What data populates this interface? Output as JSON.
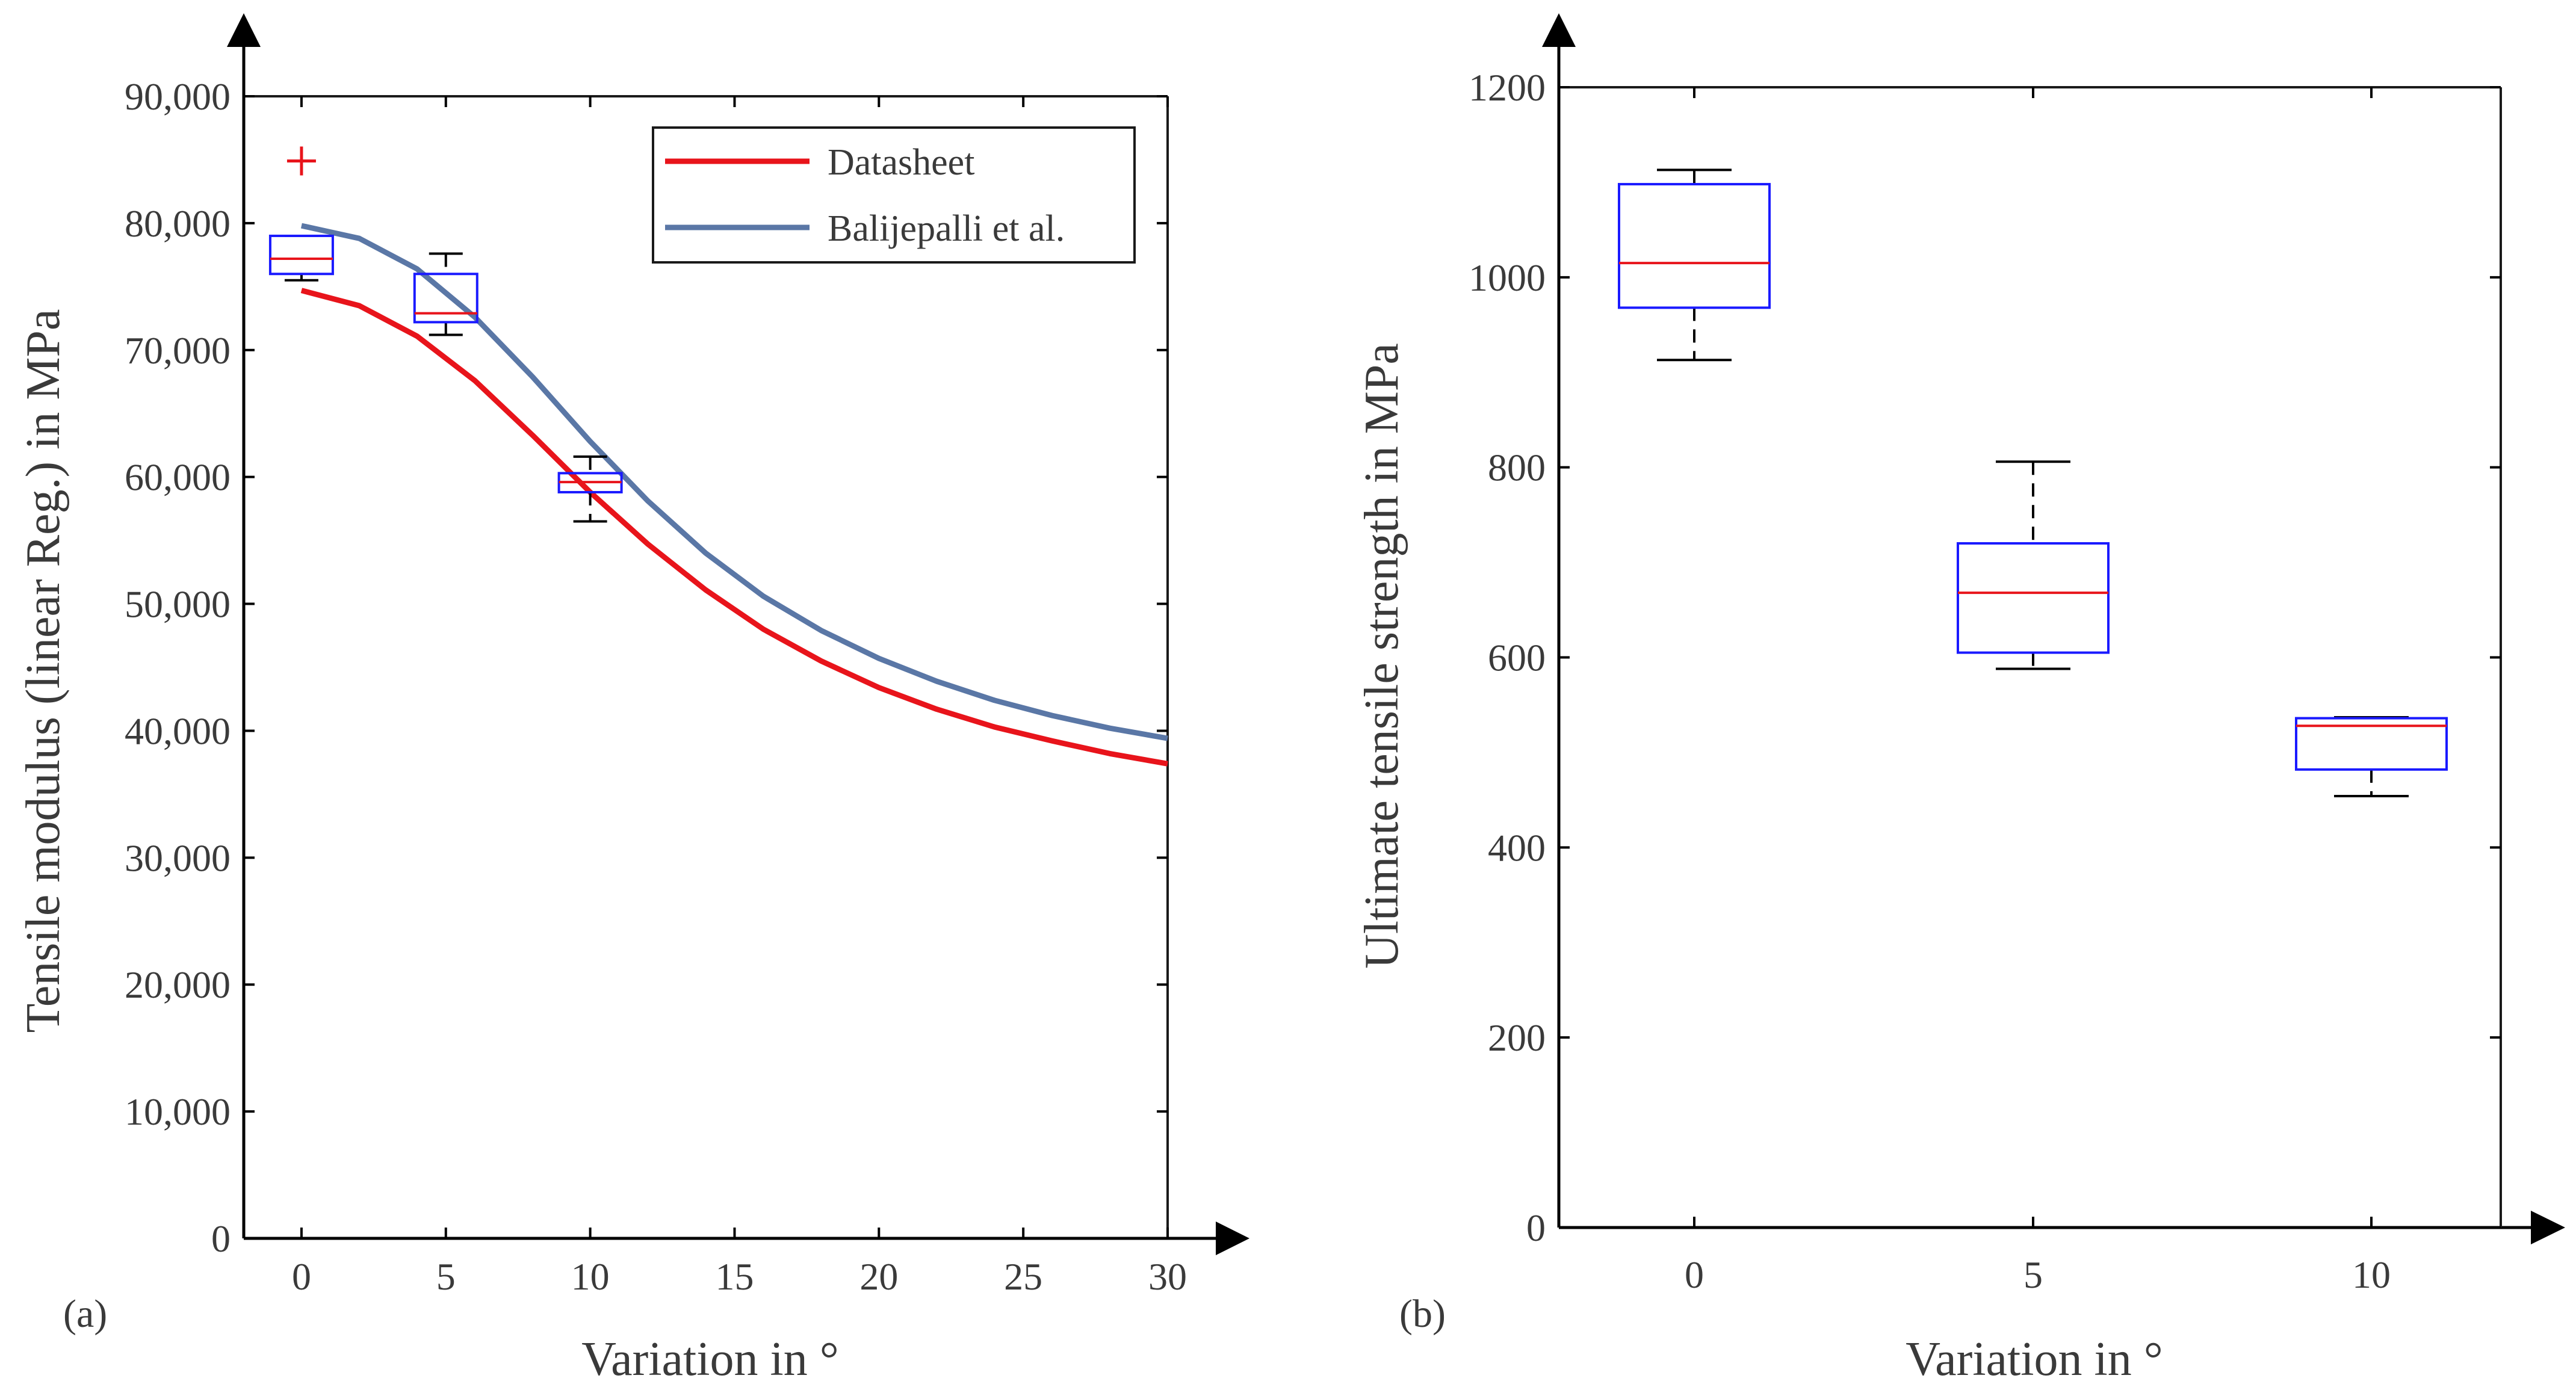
{
  "chart_data": [
    {
      "id": "a",
      "panel_label": "(a)",
      "type": "line+box",
      "xlabel": "Variation in °",
      "ylabel": "Tensile modulus (linear Reg.) in MPa",
      "xlim": [
        -2,
        30
      ],
      "ylim": [
        0,
        90000
      ],
      "xticks": [
        0,
        5,
        10,
        15,
        20,
        25,
        30
      ],
      "xtick_labels": [
        "0",
        "5",
        "10",
        "15",
        "20",
        "25",
        "30"
      ],
      "yticks": [
        0,
        10000,
        20000,
        30000,
        40000,
        50000,
        60000,
        70000,
        80000,
        90000
      ],
      "ytick_labels": [
        "0",
        "10,000",
        "20,000",
        "30,000",
        "40,000",
        "50,000",
        "60,000",
        "70,000",
        "80,000",
        "90,000"
      ],
      "legend_position": "top-right",
      "series": [
        {
          "name": "Datasheet",
          "color": "#e8141b",
          "x": [
            0,
            2,
            4,
            6,
            8,
            10,
            12,
            14,
            16,
            18,
            20,
            22,
            24,
            26,
            28,
            30
          ],
          "y": [
            74700,
            73500,
            71100,
            67600,
            63300,
            58800,
            54700,
            51100,
            48000,
            45500,
            43400,
            41700,
            40300,
            39200,
            38200,
            37400
          ]
        },
        {
          "name": "Balijepalli et al.",
          "color": "#5a77a6",
          "x": [
            0,
            2,
            4,
            6,
            8,
            10,
            12,
            14,
            16,
            18,
            20,
            22,
            24,
            26,
            28,
            30
          ],
          "y": [
            79800,
            78800,
            76400,
            72600,
            67900,
            62800,
            58100,
            54000,
            50600,
            47900,
            45700,
            43900,
            42400,
            41200,
            40200,
            39400
          ]
        }
      ],
      "boxes": [
        {
          "x": 0,
          "whisker_low": 75500,
          "q1": 76000,
          "median": 77200,
          "q3": 79000,
          "whisker_high": 79000,
          "outliers": [
            84900
          ]
        },
        {
          "x": 5,
          "whisker_low": 71200,
          "q1": 72200,
          "median": 72900,
          "q3": 76000,
          "whisker_high": 77600,
          "outliers": []
        },
        {
          "x": 10,
          "whisker_low": 56500,
          "q1": 58800,
          "median": 59600,
          "q3": 60300,
          "whisker_high": 61600,
          "outliers": []
        }
      ],
      "box_color": "#1a1aff",
      "median_color": "#e8141b",
      "whisker_color": "#000000"
    },
    {
      "id": "b",
      "panel_label": "(b)",
      "type": "box",
      "xlabel": "Variation in °",
      "ylabel": "Ultimate tensile strength in MPa",
      "categories": [
        "0",
        "5",
        "10"
      ],
      "ylim": [
        0,
        1200
      ],
      "yticks": [
        0,
        200,
        400,
        600,
        800,
        1000,
        1200
      ],
      "ytick_labels": [
        "0",
        "200",
        "400",
        "600",
        "800",
        "1000",
        "1200"
      ],
      "boxes": [
        {
          "category": "0",
          "whisker_low": 913,
          "q1": 968,
          "median": 1015,
          "q3": 1098,
          "whisker_high": 1113
        },
        {
          "category": "5",
          "whisker_low": 588,
          "q1": 605,
          "median": 668,
          "q3": 720,
          "whisker_high": 806
        },
        {
          "category": "10",
          "whisker_low": 454,
          "q1": 482,
          "median": 528,
          "q3": 536,
          "whisker_high": 537
        }
      ],
      "box_color": "#1a1aff",
      "median_color": "#e8141b",
      "whisker_color": "#000000"
    }
  ]
}
